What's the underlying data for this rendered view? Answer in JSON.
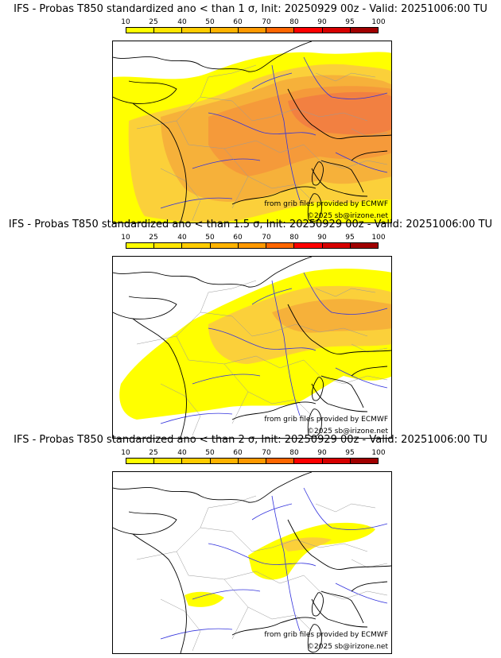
{
  "legend": {
    "ticks": [
      "10",
      "25",
      "40",
      "50",
      "60",
      "70",
      "80",
      "90",
      "95",
      "100"
    ],
    "colors": [
      "#ffff00",
      "#ffe600",
      "#ffcc00",
      "#ffb300",
      "#ff9900",
      "#ff6600",
      "#ff0000",
      "#d60000",
      "#a00000",
      "#5a0000"
    ]
  },
  "palette": {
    "p10": "#ffff00",
    "p25": "#fbd03a",
    "p40": "#f6b13a",
    "p50": "#f59a3a",
    "p60": "#f28041",
    "water_lines": "#3333dd",
    "borders": "#000000",
    "admin_lines": "#999999"
  },
  "panels": [
    {
      "title": "IFS - Probas T850  standardized ano < than 1 σ, Init: 20250929 00z - Valid: 20251006:00 TU",
      "source": "from grib files provided by ECMWF",
      "copyright": "©2025 sb@irizone.net"
    },
    {
      "title": "IFS - Probas T850  standardized ano < than 1.5 σ, Init: 20250929 00z - Valid: 20251006:00 TU",
      "source": "from grib files provided by ECMWF",
      "copyright": "©2025 sb@irizone.net"
    },
    {
      "title": "IFS - Probas T850  standardized ano < than 2 σ, Init: 20250929 00z - Valid: 20251006:00 TU",
      "source": "from grib files provided by ECMWF",
      "copyright": "©2025 sb@irizone.net"
    }
  ]
}
